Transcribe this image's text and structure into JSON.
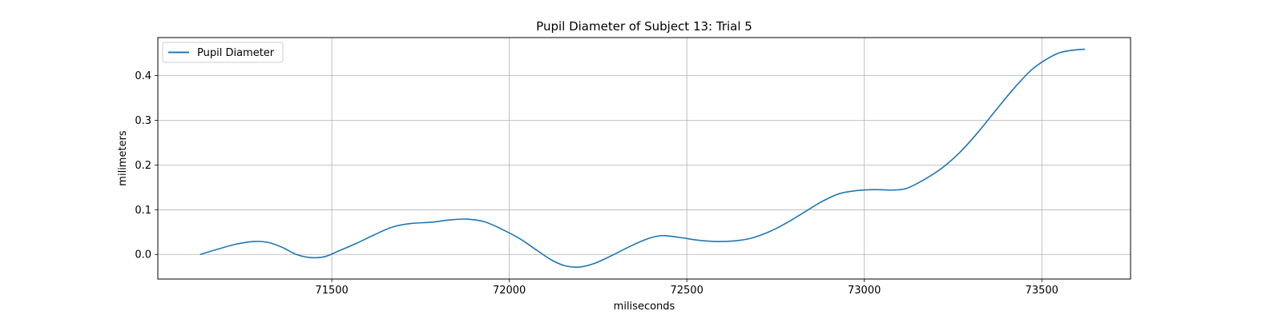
{
  "chart_data": {
    "type": "line",
    "title": "Pupil Diameter of Subject 13: Trial 5",
    "xlabel": "miliseconds",
    "ylabel": "milimeters",
    "xlim": [
      71010,
      73750
    ],
    "ylim": [
      -0.055,
      0.485
    ],
    "xticks": [
      71500,
      72000,
      72500,
      73000,
      73500
    ],
    "yticks": [
      0.0,
      0.1,
      0.2,
      0.3,
      0.4
    ],
    "grid": true,
    "legend_position": "upper-left",
    "series": [
      {
        "name": "Pupil Diameter",
        "color": "#1f77b4",
        "x": [
          71130,
          71180,
          71230,
          71280,
          71320,
          71360,
          71400,
          71440,
          71480,
          71520,
          71570,
          71620,
          71670,
          71720,
          71780,
          71830,
          71880,
          71930,
          71980,
          72030,
          72080,
          72120,
          72160,
          72200,
          72240,
          72290,
          72340,
          72390,
          72430,
          72480,
          72530,
          72580,
          72630,
          72680,
          72730,
          72780,
          72830,
          72880,
          72930,
          72980,
          73030,
          73080,
          73120,
          73170,
          73220,
          73270,
          73320,
          73370,
          73420,
          73470,
          73510,
          73550,
          73590,
          73620
        ],
        "y": [
          0.0,
          0.012,
          0.023,
          0.029,
          0.027,
          0.016,
          0.0,
          -0.007,
          -0.005,
          0.008,
          0.025,
          0.044,
          0.061,
          0.069,
          0.072,
          0.077,
          0.079,
          0.073,
          0.056,
          0.035,
          0.008,
          -0.013,
          -0.026,
          -0.028,
          -0.02,
          -0.002,
          0.018,
          0.035,
          0.042,
          0.038,
          0.032,
          0.029,
          0.03,
          0.036,
          0.05,
          0.07,
          0.094,
          0.118,
          0.136,
          0.143,
          0.145,
          0.144,
          0.148,
          0.168,
          0.194,
          0.229,
          0.273,
          0.322,
          0.37,
          0.412,
          0.435,
          0.451,
          0.457,
          0.459
        ]
      }
    ]
  }
}
